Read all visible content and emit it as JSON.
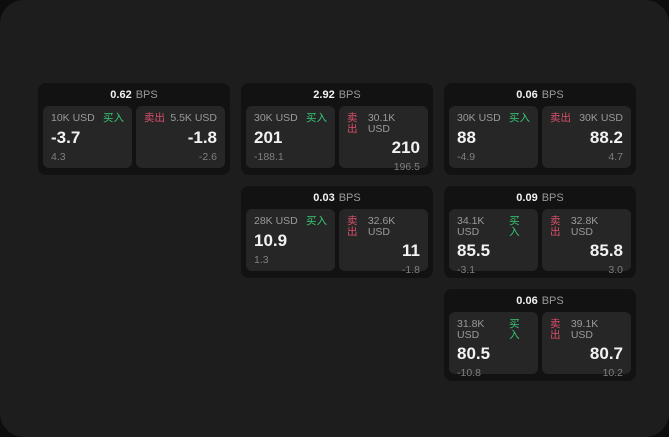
{
  "labels": {
    "buy": "买入",
    "sell": "卖出",
    "bps_unit": "BPS"
  },
  "colors": {
    "page-bg": "#0d0d0d",
    "panel-bg": "#1d1d1e",
    "card-bg": "#121212",
    "tile-bg": "#262627",
    "buy-green": "#36c873",
    "sell-red": "#d84f68"
  },
  "cards": [
    {
      "bps": "0.62",
      "buy": {
        "amount": "10K USD",
        "price": "-3.7",
        "change": "4.3"
      },
      "sell": {
        "amount": "5.5K USD",
        "price": "-1.8",
        "change": "-2.6"
      }
    },
    {
      "bps": "2.92",
      "buy": {
        "amount": "30K USD",
        "price": "201",
        "change": "-188.1"
      },
      "sell": {
        "amount": "30.1K USD",
        "price": "210",
        "change": "196.5"
      }
    },
    {
      "bps": "0.06",
      "buy": {
        "amount": "30K USD",
        "price": "88",
        "change": "-4.9"
      },
      "sell": {
        "amount": "30K USD",
        "price": "88.2",
        "change": "4.7"
      }
    },
    {
      "bps": "0.03",
      "buy": {
        "amount": "28K USD",
        "price": "10.9",
        "change": "1.3"
      },
      "sell": {
        "amount": "32.6K USD",
        "price": "11",
        "change": "-1.8"
      }
    },
    {
      "bps": "0.09",
      "buy": {
        "amount": "34.1K USD",
        "price": "85.5",
        "change": "-3.1"
      },
      "sell": {
        "amount": "32.8K USD",
        "price": "85.8",
        "change": "3.0"
      }
    },
    {
      "bps": "0.06",
      "buy": {
        "amount": "31.8K USD",
        "price": "80.5",
        "change": "-10.8"
      },
      "sell": {
        "amount": "39.1K USD",
        "price": "80.7",
        "change": "10.2"
      }
    }
  ]
}
